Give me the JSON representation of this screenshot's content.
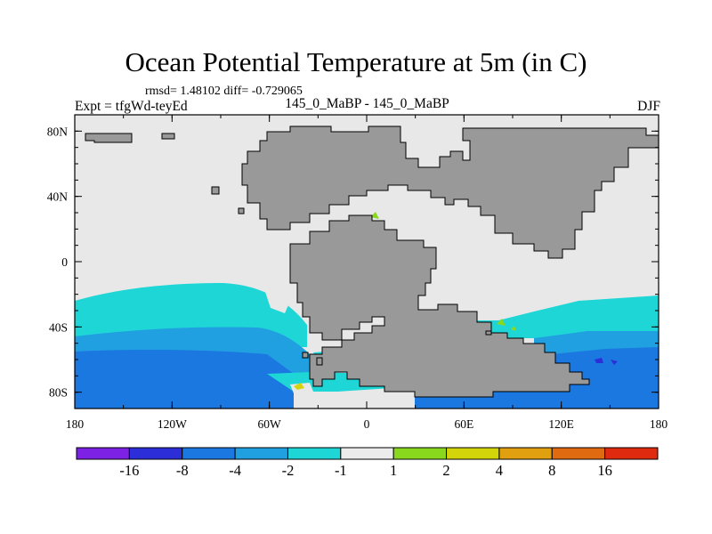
{
  "header": {
    "title": "Ocean Potential Temperature at 5m (in C)",
    "stats": "rmsd= 1.48102 diff= -0.729065",
    "left_label": "Expt = tfgWd-teyEd",
    "center_label": "145_0_MaBP - 145_0_MaBP",
    "right_label": "DJF"
  },
  "chart_data": {
    "type": "heatmap",
    "title": "Ocean Potential Temperature at 5m (in C)",
    "projection": "cylindrical equidistant",
    "xlim": [
      -180,
      180
    ],
    "ylim": [
      -90,
      90
    ],
    "x_ticks": [
      {
        "value": -180,
        "label": "180"
      },
      {
        "value": -120,
        "label": "120W"
      },
      {
        "value": -60,
        "label": "60W"
      },
      {
        "value": 0,
        "label": "0"
      },
      {
        "value": 60,
        "label": "60E"
      },
      {
        "value": 120,
        "label": "120E"
      },
      {
        "value": 180,
        "label": "180"
      }
    ],
    "y_ticks": [
      {
        "value": 80,
        "label": "80N"
      },
      {
        "value": 40,
        "label": "40N"
      },
      {
        "value": 0,
        "label": "0"
      },
      {
        "value": -40,
        "label": "40S"
      },
      {
        "value": -80,
        "label": "80S"
      }
    ],
    "contour_levels": [
      "-16",
      "-8",
      "-4",
      "-2",
      "-1",
      "1",
      "2",
      "4",
      "8",
      "16"
    ],
    "colorbar_colors": [
      "#7d21e5",
      "#2c2ed8",
      "#1a78e0",
      "#20a0e0",
      "#1ed6d6",
      "#ececec",
      "#8ad81e",
      "#d4d40a",
      "#e0a010",
      "#e06a10",
      "#e02a10"
    ],
    "land_color": "#999999",
    "ocean_neutral_color": "#e8e8e8",
    "colorbar_position": "bottom"
  }
}
